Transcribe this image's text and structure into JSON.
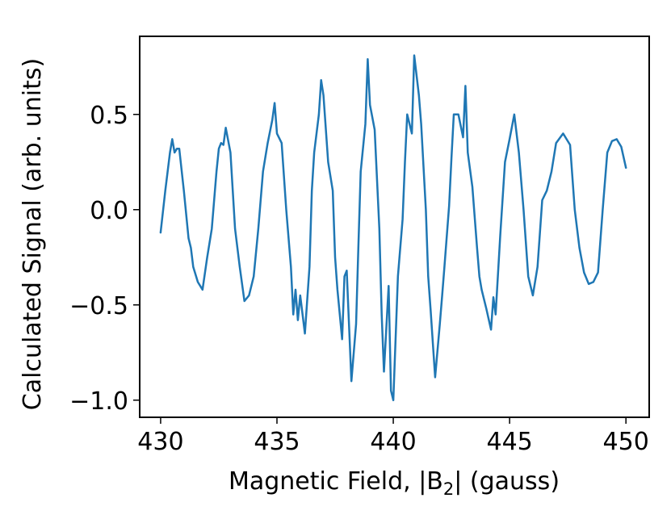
{
  "chart_data": {
    "type": "line",
    "title": "",
    "xlabel": "Magnetic Field, |B",
    "xlabel_sub": "2",
    "xlabel_suffix": "| (gauss)",
    "ylabel": "Calculated Signal (arb. units)",
    "xlim": [
      429.1,
      451.0
    ],
    "ylim": [
      -1.09,
      0.91
    ],
    "x_ticks": [
      430,
      435,
      440,
      445,
      450
    ],
    "x_tick_labels": [
      "430",
      "435",
      "440",
      "445",
      "450"
    ],
    "y_ticks": [
      -1.0,
      -0.5,
      0.0,
      0.5
    ],
    "y_tick_labels": [
      "−1.0",
      "−0.5",
      "0.0",
      "0.5"
    ],
    "grid": false,
    "series": [
      {
        "color": "#1f77b4",
        "x": [
          430.0,
          430.2,
          430.4,
          430.5,
          430.6,
          430.7,
          430.8,
          431.0,
          431.2,
          431.3,
          431.4,
          431.6,
          431.8,
          432.0,
          432.2,
          432.4,
          432.5,
          432.6,
          432.7,
          432.8,
          433.0,
          433.2,
          433.4,
          433.6,
          433.8,
          434.0,
          434.2,
          434.4,
          434.6,
          434.8,
          434.9,
          435.0,
          435.2,
          435.4,
          435.6,
          435.7,
          435.8,
          435.9,
          436.0,
          436.2,
          436.4,
          436.5,
          436.6,
          436.8,
          436.9,
          437.0,
          437.2,
          437.4,
          437.5,
          437.6,
          437.8,
          437.9,
          438.0,
          438.2,
          438.4,
          438.5,
          438.6,
          438.8,
          438.9,
          439.0,
          439.2,
          439.4,
          439.5,
          439.6,
          439.8,
          439.9,
          440.0,
          440.2,
          440.4,
          440.5,
          440.6,
          440.8,
          440.9,
          441.1,
          441.2,
          441.4,
          441.5,
          441.6,
          441.8,
          442.0,
          442.1,
          442.2,
          442.4,
          442.5,
          442.6,
          442.8,
          443.0,
          443.1,
          443.2,
          443.4,
          443.6,
          443.7,
          443.8,
          444.0,
          444.2,
          444.3,
          444.4,
          444.6,
          444.8,
          445.0,
          445.2,
          445.4,
          445.6,
          445.8,
          446.0,
          446.2,
          446.4,
          446.6,
          446.8,
          447.0,
          447.3,
          447.6,
          447.8,
          448.0,
          448.2,
          448.4,
          448.6,
          448.8,
          449.0,
          449.2,
          449.4,
          449.6,
          449.8,
          450.0
        ],
        "y": [
          -0.12,
          0.1,
          0.3,
          0.37,
          0.3,
          0.32,
          0.32,
          0.1,
          -0.15,
          -0.2,
          -0.3,
          -0.38,
          -0.42,
          -0.25,
          -0.1,
          0.2,
          0.32,
          0.35,
          0.34,
          0.43,
          0.3,
          -0.1,
          -0.3,
          -0.48,
          -0.45,
          -0.35,
          -0.1,
          0.2,
          0.35,
          0.47,
          0.56,
          0.4,
          0.35,
          0.0,
          -0.3,
          -0.55,
          -0.42,
          -0.58,
          -0.45,
          -0.65,
          -0.3,
          0.1,
          0.3,
          0.5,
          0.68,
          0.6,
          0.25,
          0.1,
          -0.25,
          -0.42,
          -0.68,
          -0.35,
          -0.32,
          -0.9,
          -0.6,
          -0.2,
          0.2,
          0.45,
          0.79,
          0.55,
          0.42,
          -0.1,
          -0.55,
          -0.85,
          -0.4,
          -0.95,
          -1.0,
          -0.35,
          -0.05,
          0.25,
          0.5,
          0.4,
          0.81,
          0.6,
          0.45,
          0.0,
          -0.35,
          -0.52,
          -0.88,
          -0.6,
          -0.45,
          -0.3,
          0.02,
          0.27,
          0.5,
          0.5,
          0.38,
          0.65,
          0.3,
          0.12,
          -0.2,
          -0.35,
          -0.42,
          -0.52,
          -0.63,
          -0.46,
          -0.55,
          -0.13,
          0.25,
          0.37,
          0.5,
          0.3,
          0.0,
          -0.35,
          -0.45,
          -0.3,
          0.05,
          0.1,
          0.2,
          0.35,
          0.4,
          0.34,
          0.0,
          -0.2,
          -0.33,
          -0.39,
          -0.38,
          -0.33,
          0.0,
          0.3,
          0.36,
          0.37,
          0.33,
          0.22
        ]
      }
    ]
  }
}
